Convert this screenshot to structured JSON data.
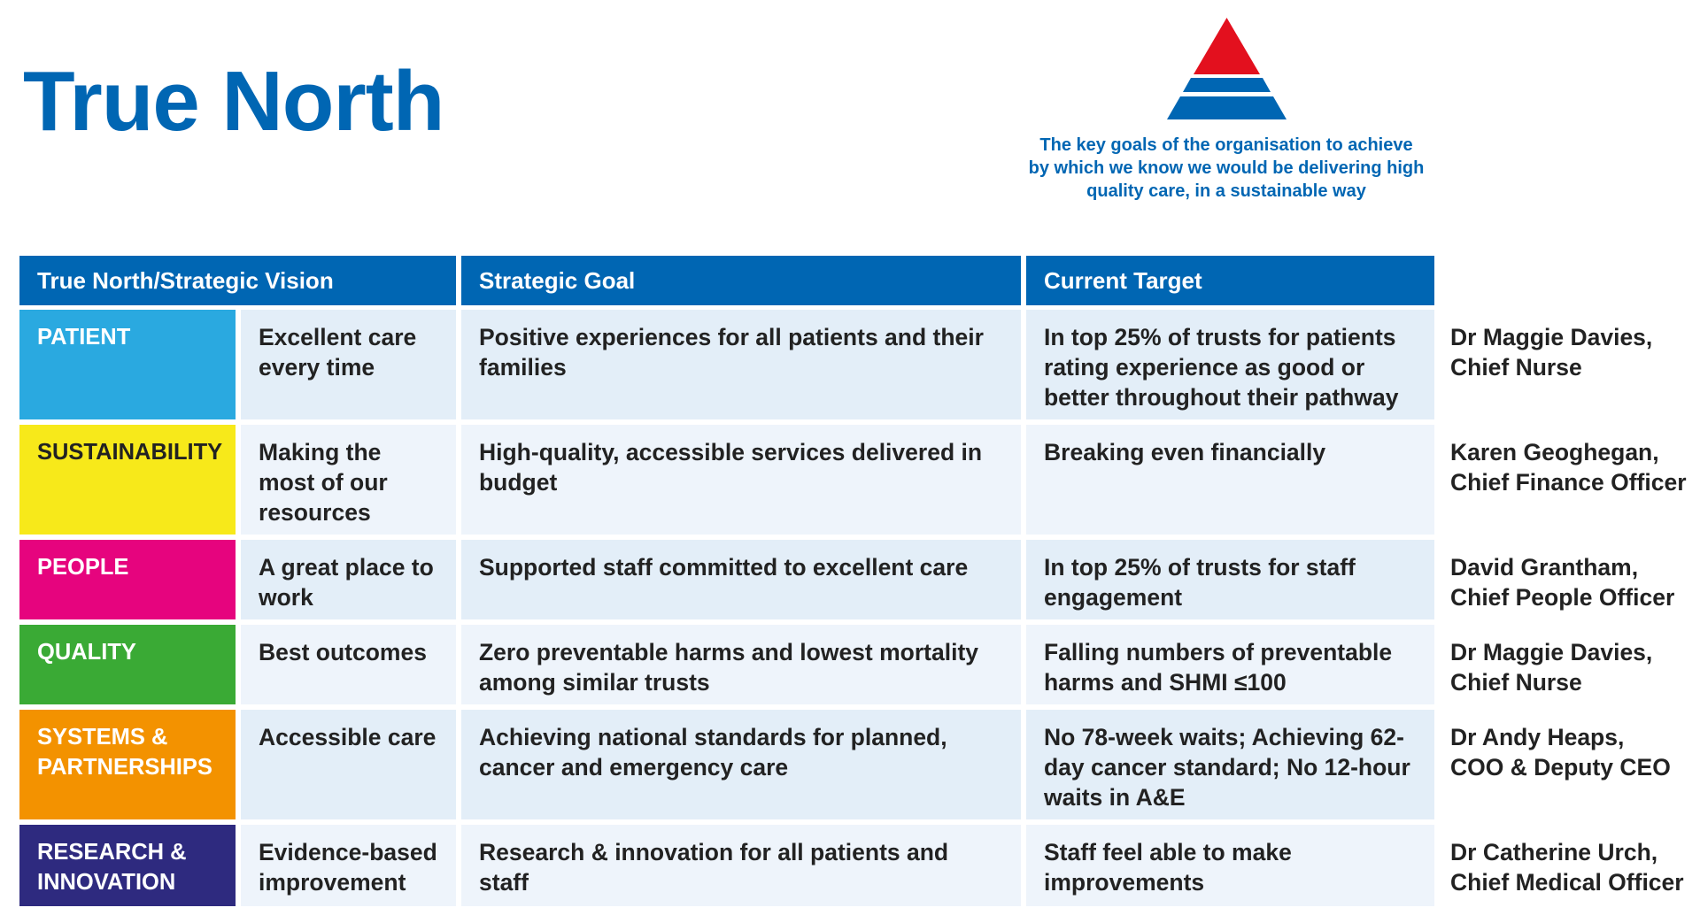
{
  "title": "True North",
  "caption": "The key goals of the organisation to achieve by which we know we would be delivering high quality care, in a sustainable way",
  "pyramid_icon": "triangle-red-blue-icon",
  "colors": {
    "brand_blue": "#0066b3",
    "pyramid_red": "#e3101e",
    "pyramid_blue": "#0066b3"
  },
  "table": {
    "headers": [
      "True North/Strategic Vision",
      "Strategic Goal",
      "Current Target"
    ],
    "rows": [
      {
        "category": "PATIENT",
        "color": "#2aa9e0",
        "vision": "Excellent care every time",
        "goal": "Positive experiences for all patients and their families",
        "target": "In top 25% of trusts for patients rating experience as good or better throughout their pathway",
        "owner_name": "Dr Maggie Davies,",
        "owner_role": "Chief Nurse"
      },
      {
        "category": "SUSTAINABILITY",
        "color": "#f7e91a",
        "vision": "Making the most of our resources",
        "goal": "High-quality, accessible services delivered in budget",
        "target": "Breaking even financially",
        "owner_name": "Karen Geoghegan,",
        "owner_role": "Chief Finance Officer"
      },
      {
        "category": "PEOPLE",
        "color": "#e6047e",
        "vision": "A great place to work",
        "goal": "Supported staff committed to excellent care",
        "target": "In top 25% of trusts for staff engagement",
        "owner_name": "David Grantham,",
        "owner_role": "Chief People Officer"
      },
      {
        "category": "QUALITY",
        "color": "#3aaa35",
        "vision": "Best outcomes",
        "goal": "Zero preventable harms and lowest mortality among similar trusts",
        "target": "Falling numbers of preventable harms and SHMI ≤100",
        "owner_name": "Dr Maggie Davies,",
        "owner_role": "Chief Nurse"
      },
      {
        "category": "SYSTEMS & PARTNERSHIPS",
        "color": "#f39200",
        "vision": "Accessible care",
        "goal": "Achieving national standards for planned, cancer and emergency care",
        "target": "No 78-week waits; Achieving 62-day cancer standard; No 12-hour waits in A&E",
        "owner_name": "Dr Andy Heaps,",
        "owner_role": "COO & Deputy CEO"
      },
      {
        "category": "RESEARCH & INNOVATION",
        "color": "#2e2a7f",
        "vision": "Evidence-based improvement",
        "goal": "Research & innovation for all patients and staff",
        "target": "Staff feel able to make improvements",
        "owner_name": "Dr Catherine Urch,",
        "owner_role": "Chief Medical Officer"
      }
    ]
  }
}
